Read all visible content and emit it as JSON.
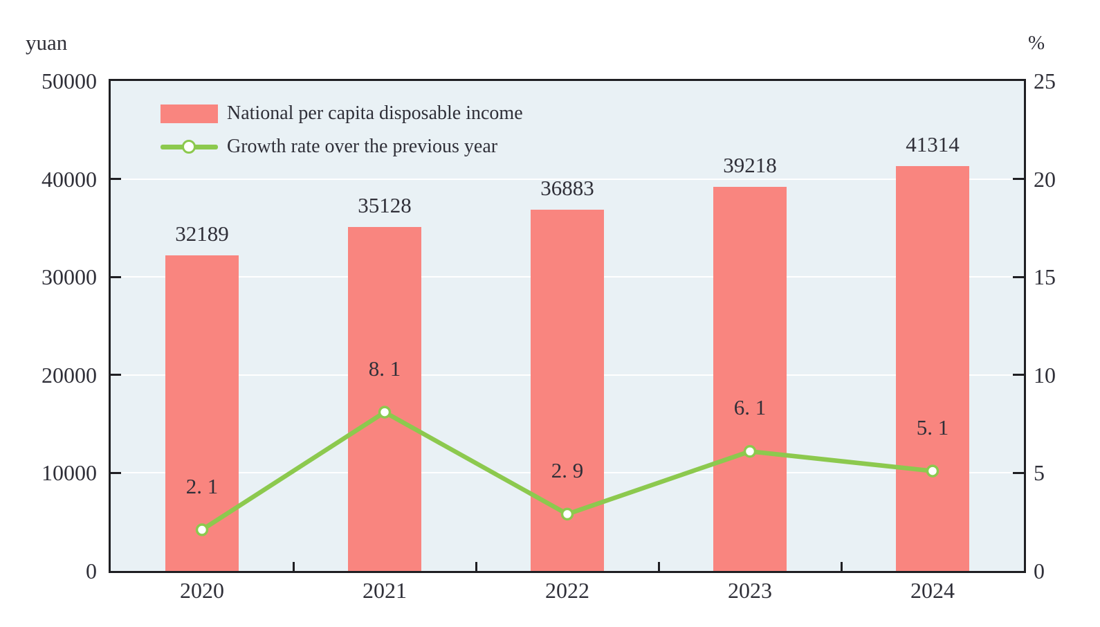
{
  "chart_data": {
    "type": "combo",
    "categories": [
      "2020",
      "2021",
      "2022",
      "2023",
      "2024"
    ],
    "series": [
      {
        "name": "National per capita disposable income",
        "type": "bar",
        "axis": "left",
        "unit": "yuan",
        "values": [
          32189,
          35128,
          36883,
          39218,
          41314
        ],
        "labels": [
          "32189",
          "35128",
          "36883",
          "39218",
          "41314"
        ],
        "color": "#f9857f"
      },
      {
        "name": "Growth rate over the previous year",
        "type": "line",
        "axis": "right",
        "unit": "%",
        "values": [
          2.1,
          8.1,
          2.9,
          6.1,
          5.1
        ],
        "labels": [
          "2. 1",
          "8. 1",
          "2. 9",
          "6. 1",
          "5. 1"
        ],
        "color": "#8cc94e",
        "marker_fill": "#ffffff"
      }
    ],
    "left_axis": {
      "title": "yuan",
      "min": 0,
      "max": 50000,
      "ticks": [
        0,
        10000,
        20000,
        30000,
        40000,
        50000
      ],
      "tick_labels": [
        "0",
        "10000",
        "20000",
        "30000",
        "40000",
        "50000"
      ]
    },
    "right_axis": {
      "title": "%",
      "min": 0,
      "max": 25,
      "ticks": [
        0,
        5,
        10,
        15,
        20,
        25
      ],
      "tick_labels": [
        "0",
        "5",
        "10",
        "15",
        "20",
        "25"
      ]
    },
    "grid": true,
    "legend_position": "top-left-inside",
    "colors": {
      "plot_background": "#e9f1f5",
      "gridline": "#ffffff",
      "axis_border": "#1f1f23",
      "text": "#2f2f38"
    }
  }
}
